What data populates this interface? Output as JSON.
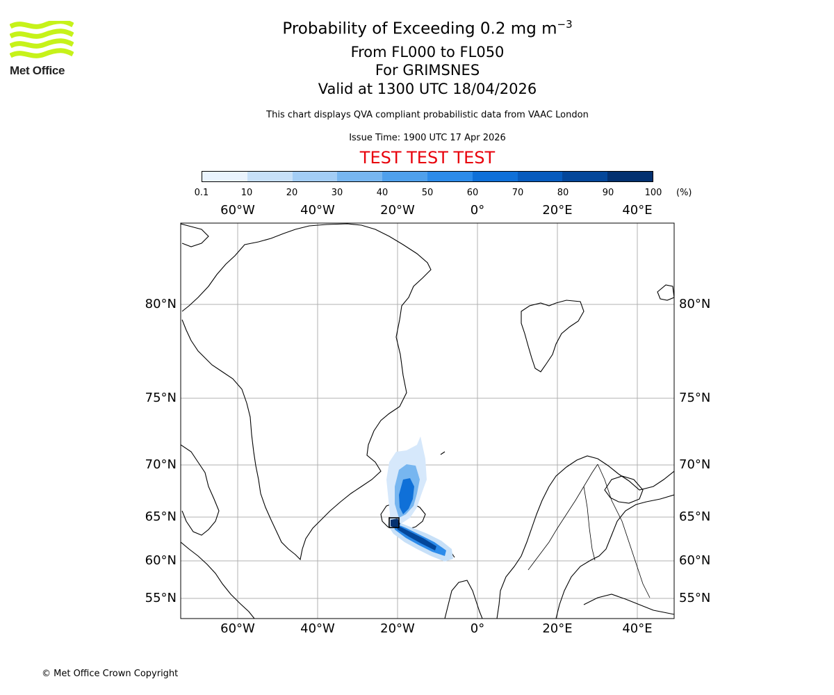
{
  "logo": {
    "name": "Met Office"
  },
  "title": {
    "line1_prefix": "Probability of Exceeding 0.2 mg m",
    "line1_exponent": "−3",
    "line2": "From FL000 to FL050",
    "line3": "For GRIMSNES",
    "line4": "Valid at 1300 UTC 18/04/2026",
    "subtitle": "This chart displays QVA compliant probabilistic data from VAAC London",
    "issue_time": "Issue Time: 1900 UTC 17 Apr 2026",
    "test_banner": "TEST TEST TEST"
  },
  "colorbar": {
    "ticks": [
      "0.1",
      "10",
      "20",
      "30",
      "40",
      "50",
      "60",
      "70",
      "80",
      "90",
      "100"
    ],
    "unit": "(%)",
    "colors": [
      "#eaf3fd",
      "#c7e0f8",
      "#a3cdf5",
      "#77b6f0",
      "#4fa0ec",
      "#2c8bea",
      "#0f70d8",
      "#075bbd",
      "#04479a",
      "#033170"
    ]
  },
  "map": {
    "lon_labels": [
      "60°W",
      "40°W",
      "20°W",
      "0°",
      "20°E",
      "40°E"
    ],
    "lat_labels": [
      "80°N",
      "75°N",
      "70°N",
      "65°N",
      "60°N",
      "55°N"
    ],
    "volcano": "GRIMSNES",
    "ash_plume": {
      "description_values_percent": [
        10,
        30,
        60,
        90
      ],
      "peak_probability_percent": 100
    }
  },
  "footer": {
    "copyright": "© Met Office Crown Copyright"
  }
}
